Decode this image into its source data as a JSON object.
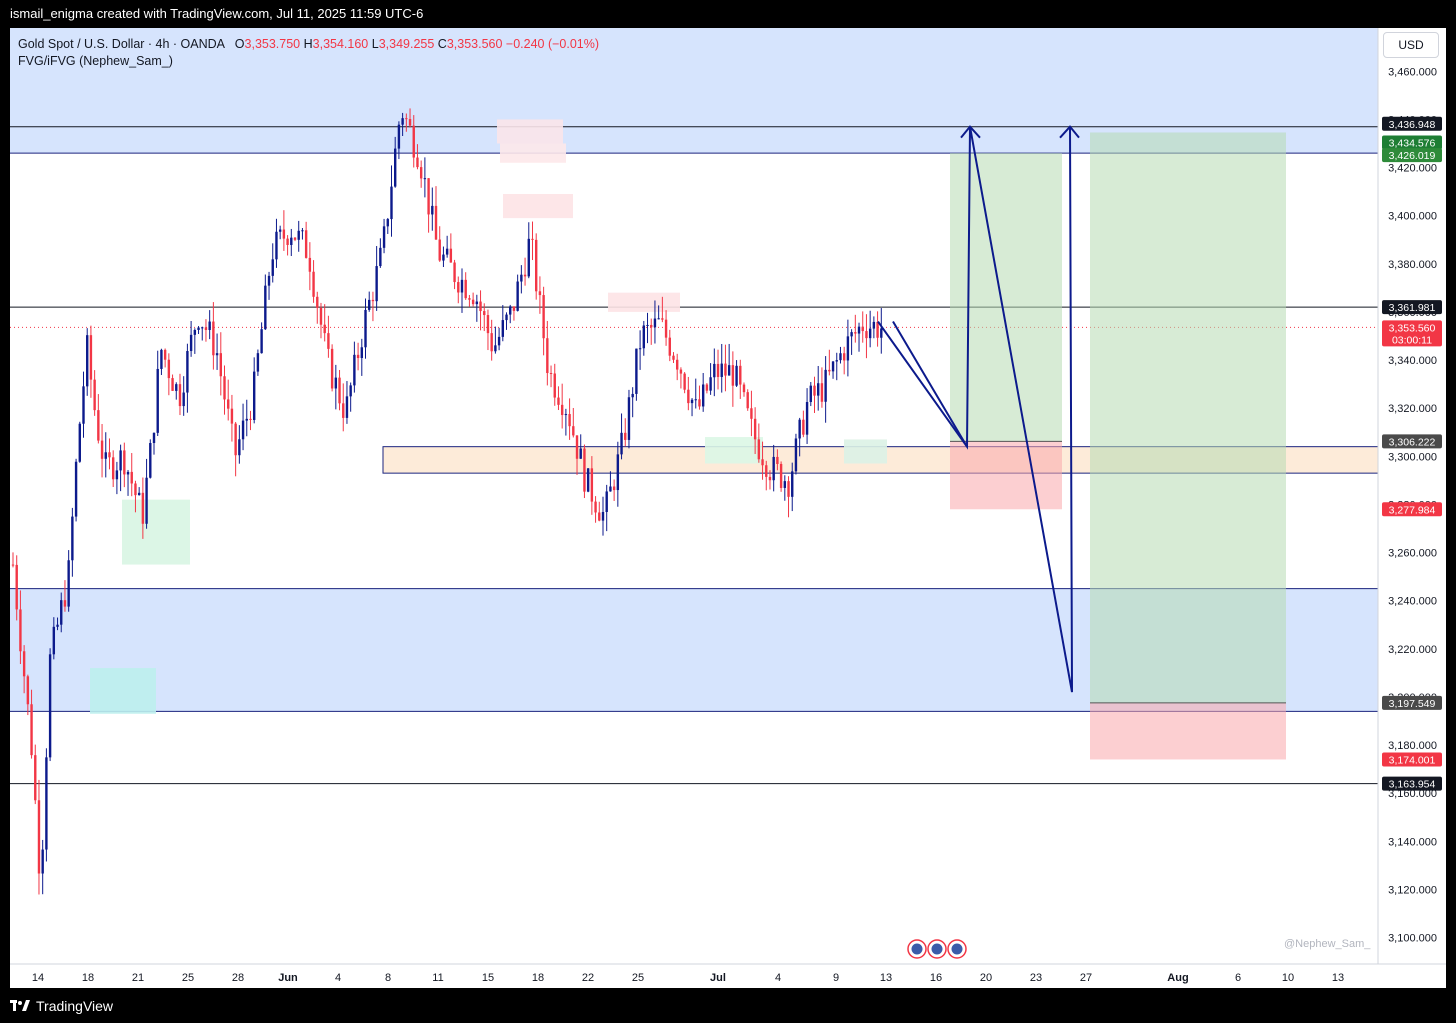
{
  "header": {
    "credit": "ismail_enigma created with TradingView.com, Jul 11, 2025 11:59 UTC-6"
  },
  "legend": {
    "symbol": "Gold Spot / U.S. Dollar · 4h · OANDA",
    "o_label": "O",
    "o_value": "3,353.750",
    "h_label": "H",
    "h_value": "3,354.160",
    "l_label": "L",
    "l_value": "3,349.255",
    "c_label": "C",
    "c_value": "3,353.560",
    "change": "−0.240 (−0.01%)",
    "indicator": "FVG/iFVG (Nephew_Sam_)"
  },
  "currency_button": "USD",
  "watermark": "@Nephew_Sam_",
  "footer": {
    "brand": "TradingView"
  },
  "colors": {
    "up": "#0c1a8c",
    "down": "#f23645",
    "zone_blue": "#d6e4fd",
    "zone_orange": "#fdebd9"
  },
  "chart_data": {
    "type": "candlestick",
    "y_ticks": [
      3100,
      3120,
      3140,
      3160,
      3180,
      3200,
      3220,
      3240,
      3260,
      3280,
      3300,
      3320,
      3340,
      3360,
      3380,
      3400,
      3420,
      3440,
      3460
    ],
    "ylim": [
      3089,
      3478
    ],
    "x_ticks": [
      "14",
      "18",
      "21",
      "25",
      "28",
      "Jun",
      "4",
      "8",
      "11",
      "15",
      "18",
      "22",
      "25",
      "Jul",
      "4",
      "9",
      "13",
      "16",
      "20",
      "23",
      "27",
      "Aug",
      "6",
      "10",
      "13"
    ],
    "x_tick_index": [
      0,
      1,
      2,
      3,
      4,
      5,
      6,
      7,
      8,
      9,
      10,
      11,
      12,
      13,
      14,
      15,
      16,
      17,
      18,
      19,
      20,
      21,
      22,
      23,
      24
    ],
    "price_key_points": [
      [
        0,
        3255
      ],
      [
        1,
        3180
      ],
      [
        1.5,
        3122
      ],
      [
        2,
        3215
      ],
      [
        3,
        3250
      ],
      [
        3.5,
        3305
      ],
      [
        4,
        3345
      ],
      [
        4.5,
        3315
      ],
      [
        5,
        3295
      ],
      [
        6,
        3300
      ],
      [
        7,
        3275
      ],
      [
        7.5,
        3305
      ],
      [
        8,
        3345
      ],
      [
        9,
        3325
      ],
      [
        10,
        3360
      ],
      [
        11,
        3345
      ],
      [
        12,
        3300
      ],
      [
        13,
        3325
      ],
      [
        14,
        3385
      ],
      [
        15,
        3395
      ],
      [
        16,
        3385
      ],
      [
        17,
        3340
      ],
      [
        18,
        3318
      ],
      [
        19,
        3355
      ],
      [
        20,
        3385
      ],
      [
        21,
        3445
      ],
      [
        22,
        3425
      ],
      [
        23,
        3385
      ],
      [
        24,
        3375
      ],
      [
        25,
        3368
      ],
      [
        26,
        3345
      ],
      [
        27,
        3360
      ],
      [
        28,
        3390
      ],
      [
        29,
        3335
      ],
      [
        30,
        3320
      ],
      [
        31,
        3290
      ],
      [
        32,
        3275
      ],
      [
        33,
        3305
      ],
      [
        34,
        3350
      ],
      [
        35,
        3355
      ],
      [
        36,
        3340
      ],
      [
        37,
        3318
      ],
      [
        38,
        3335
      ],
      [
        39,
        3335
      ],
      [
        40,
        3310
      ],
      [
        41,
        3295
      ],
      [
        42,
        3290
      ],
      [
        43,
        3322
      ],
      [
        44,
        3330
      ],
      [
        45,
        3345
      ],
      [
        46,
        3355
      ],
      [
        47,
        3353.56
      ]
    ],
    "levels": [
      {
        "label": "3,436.948",
        "value": 3436.948,
        "color": "#131722"
      },
      {
        "label": "3,434.576",
        "value": 3434.576,
        "color": "#1e7e34"
      },
      {
        "label": "3,426.019",
        "value": 3426.019,
        "color": "#2e8b3a"
      },
      {
        "label": "3,361.981",
        "value": 3361.981,
        "color": "#131722"
      },
      {
        "label": "3,353.560",
        "value": 3353.56,
        "color": "#f23645",
        "sub": "03:00:11"
      },
      {
        "label": "3,306.222",
        "value": 3306.222,
        "color": "#4a4a4a"
      },
      {
        "label": "3,277.984",
        "value": 3277.984,
        "color": "#f23645"
      },
      {
        "label": "3,197.549",
        "value": 3197.549,
        "color": "#4a4a4a"
      },
      {
        "label": "3,174.001",
        "value": 3174.001,
        "color": "#f23645"
      },
      {
        "label": "3,163.954",
        "value": 3163.954,
        "color": "#131722"
      }
    ],
    "zones": [
      {
        "kind": "supply",
        "from": 3426.019,
        "to": 3478
      },
      {
        "kind": "demand",
        "from": 3194,
        "to": 3245
      },
      {
        "kind": "range",
        "from": 3293,
        "to": 3304
      }
    ],
    "positions": [
      {
        "kind": "long",
        "entry": 3306.222,
        "target": 3426.019,
        "stop": 3277.984
      },
      {
        "kind": "long",
        "entry": 3197.549,
        "target": 3434.576,
        "stop": 3174.001
      }
    ],
    "projection": [
      [
        3353,
        "now"
      ],
      [
        3306,
        "drop"
      ],
      [
        3437,
        "rally"
      ],
      [
        3201,
        "deep drop"
      ],
      [
        3437,
        "rally"
      ]
    ]
  }
}
